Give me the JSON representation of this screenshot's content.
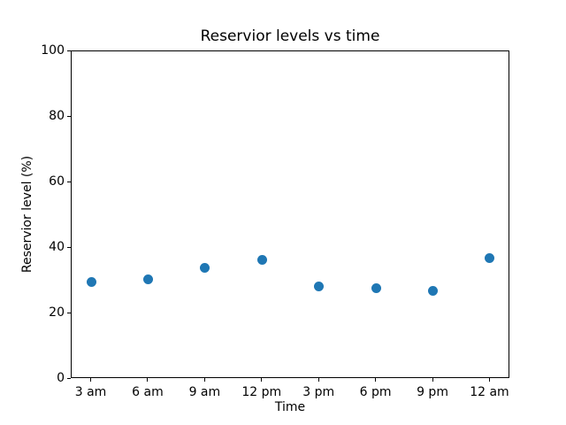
{
  "chart_data": {
    "type": "scatter",
    "title": "Reservior levels vs time",
    "xlabel": "Time",
    "ylabel": "Reservior level (%)",
    "categories": [
      "3 am",
      "6 am",
      "9 am",
      "12 pm",
      "3 pm",
      "6 pm",
      "9 pm",
      "12 am"
    ],
    "values": [
      29.3,
      30.2,
      33.6,
      36.1,
      27.9,
      27.4,
      26.7,
      36.7
    ],
    "ylim": [
      0,
      100
    ],
    "yticks": [
      0,
      20,
      40,
      60,
      80,
      100
    ],
    "grid": false,
    "legend": null,
    "marker_color": "#1f77b4",
    "spine_color": "#000000"
  }
}
